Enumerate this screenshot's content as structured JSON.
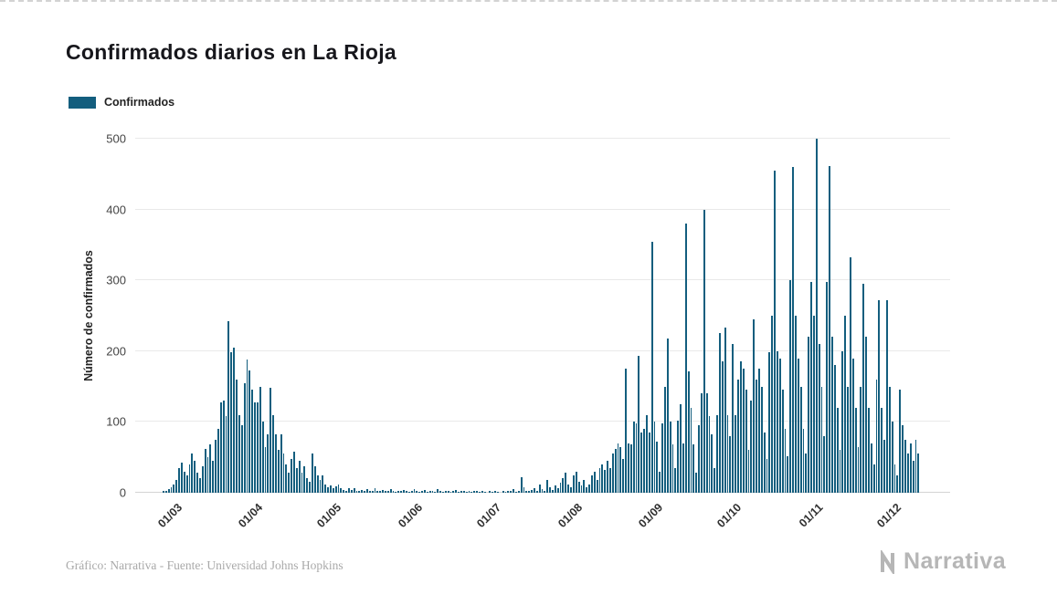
{
  "page": {
    "title": "Confirmados diarios en La Rioja"
  },
  "legend": {
    "label": "Confirmados"
  },
  "colors": {
    "bar": "#135e7e",
    "grid": "#e9e9e9",
    "text": "#222222",
    "muted": "#a9a9a9"
  },
  "footer": {
    "credit": "Gráfico: Narrativa - Fuente: Universidad Johns Hopkins",
    "brand": "Narrativa"
  },
  "chart_data": {
    "type": "bar",
    "title": "Confirmados diarios en La Rioja",
    "ylabel": "Número de confirmados",
    "xlabel": "",
    "ylim": [
      0,
      500
    ],
    "yticks": [
      0,
      100,
      200,
      300,
      400,
      500
    ],
    "grid": true,
    "legend_position": "top-left",
    "series_name": "Confirmados",
    "x_unit": "day",
    "xticks": [
      "01/03",
      "01/04",
      "01/05",
      "01/06",
      "01/07",
      "01/08",
      "01/09",
      "01/10",
      "01/11",
      "01/12"
    ],
    "xtick_days": [
      0,
      31,
      61,
      92,
      122,
      153,
      184,
      214,
      245,
      275
    ],
    "values": [
      2,
      3,
      5,
      8,
      12,
      18,
      35,
      42,
      30,
      25,
      40,
      55,
      45,
      28,
      20,
      38,
      62,
      50,
      68,
      45,
      75,
      90,
      128,
      130,
      108,
      242,
      198,
      205,
      160,
      110,
      95,
      155,
      188,
      173,
      145,
      128,
      127,
      150,
      100,
      65,
      83,
      148,
      110,
      82,
      60,
      83,
      55,
      40,
      28,
      48,
      58,
      35,
      45,
      28,
      38,
      20,
      15,
      55,
      38,
      25,
      18,
      25,
      12,
      8,
      10,
      7,
      9,
      11,
      6,
      4,
      3,
      6,
      4,
      7,
      3,
      2,
      4,
      2,
      5,
      3,
      2,
      6,
      3,
      2,
      4,
      2,
      3,
      5,
      2,
      1,
      2,
      3,
      4,
      2,
      1,
      3,
      5,
      2,
      1,
      2,
      4,
      1,
      2,
      3,
      1,
      5,
      2,
      1,
      3,
      2,
      1,
      2,
      4,
      1,
      2,
      3,
      1,
      2,
      1,
      3,
      2,
      1,
      2,
      1,
      0,
      2,
      1,
      3,
      1,
      0,
      2,
      1,
      3,
      2,
      5,
      1,
      2,
      22,
      8,
      3,
      2,
      4,
      6,
      3,
      12,
      5,
      2,
      18,
      8,
      4,
      10,
      6,
      14,
      20,
      28,
      12,
      8,
      25,
      30,
      15,
      10,
      18,
      8,
      12,
      25,
      30,
      18,
      35,
      40,
      32,
      45,
      35,
      55,
      62,
      70,
      65,
      48,
      175,
      70,
      68,
      100,
      98,
      193,
      85,
      90,
      110,
      85,
      355,
      100,
      72,
      30,
      98,
      150,
      218,
      100,
      68,
      35,
      102,
      125,
      70,
      380,
      172,
      120,
      68,
      28,
      95,
      140,
      400,
      140,
      108,
      82,
      35,
      110,
      225,
      186,
      233,
      110,
      80,
      210,
      110,
      160,
      185,
      175,
      145,
      60,
      130,
      245,
      160,
      175,
      150,
      85,
      48,
      198,
      250,
      455,
      200,
      190,
      145,
      90,
      52,
      300,
      460,
      250,
      190,
      150,
      90,
      55,
      220,
      298,
      250,
      500,
      210,
      150,
      80,
      298,
      462,
      220,
      180,
      120,
      60,
      200,
      250,
      150,
      332,
      190,
      120,
      65,
      150,
      295,
      220,
      120,
      70,
      40,
      160,
      272,
      120,
      75,
      272,
      150,
      100,
      40,
      25,
      145,
      95,
      75,
      55,
      70,
      45,
      75,
      55
    ]
  }
}
